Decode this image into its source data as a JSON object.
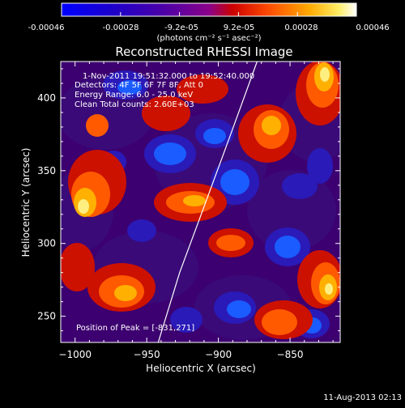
{
  "colorbar": {
    "ticks": [
      "-0.00046",
      "-0.00028",
      "-9.2e-05",
      "9.2e-05",
      "0.00028",
      "0.00046"
    ],
    "unit_label": "(photons cm⁻² s⁻¹ asec⁻²)",
    "range": [
      -0.00046,
      0.00046
    ]
  },
  "info_lines": [
    "1-Nov-2011 19:51:32.000 to 19:52:40.000",
    "Detectors: 4F 5F 6F 7F 8F, Att 0",
    "Energy Range: 6.0 - 25.0 keV",
    "Clean     Total counts: 2.60E+03"
  ],
  "peak_label": "Position of Peak = [-831,271]",
  "footer_date": "11-Aug-2013 02:13",
  "chart_data": {
    "type": "heatmap",
    "title": "Reconstructed RHESSI Image",
    "xlabel": "Heliocentric X (arcsec)",
    "ylabel": "Heliocentric Y (arcsec)",
    "xlim": [
      -1010,
      -815
    ],
    "ylim": [
      232,
      425
    ],
    "xticks": [
      {
        "value": -1000,
        "label": "−1000"
      },
      {
        "value": -950,
        "label": "−950"
      },
      {
        "value": -900,
        "label": "−900"
      },
      {
        "value": -850,
        "label": "−850"
      }
    ],
    "yticks": [
      {
        "value": 250,
        "label": "250"
      },
      {
        "value": 300,
        "label": "300"
      },
      {
        "value": 350,
        "label": "350"
      },
      {
        "value": 400,
        "label": "400"
      }
    ],
    "limb_curve": [
      [
        -942,
        232
      ],
      [
        -927,
        280
      ],
      [
        -912,
        320
      ],
      [
        -897,
        360
      ],
      [
        -884,
        395
      ],
      [
        -873,
        425
      ]
    ],
    "peak": [
      -831,
      271
    ]
  }
}
